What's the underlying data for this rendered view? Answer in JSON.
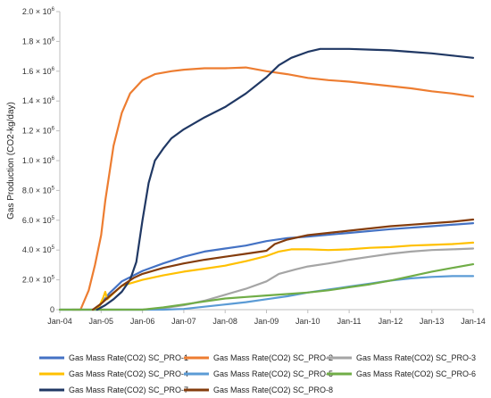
{
  "chart_data": {
    "type": "line",
    "title": "",
    "xlabel": "",
    "ylabel": "Gas Production (CO2-kg/day)",
    "xlim": [
      2004.0,
      2014.0
    ],
    "ylim": [
      0,
      2000000
    ],
    "x_ticks": [
      "Jan-04",
      "Jan-05",
      "Jan-06",
      "Jan-07",
      "Jan-08",
      "Jan-09",
      "Jan-10",
      "Jan-11",
      "Jan-12",
      "Jan-13",
      "Jan-14"
    ],
    "y_ticks": [
      {
        "mantissa": "0",
        "exp": "",
        "value": 0
      },
      {
        "mantissa": "2.0 × 10",
        "exp": "5",
        "value": 200000
      },
      {
        "mantissa": "4.0 × 10",
        "exp": "5",
        "value": 400000
      },
      {
        "mantissa": "6.0 × 10",
        "exp": "5",
        "value": 600000
      },
      {
        "mantissa": "8.0 × 10",
        "exp": "5",
        "value": 800000
      },
      {
        "mantissa": "1.0 × 10",
        "exp": "6",
        "value": 1000000
      },
      {
        "mantissa": "1.2 × 10",
        "exp": "6",
        "value": 1200000
      },
      {
        "mantissa": "1.4 × 10",
        "exp": "6",
        "value": 1400000
      },
      {
        "mantissa": "1.6 × 10",
        "exp": "6",
        "value": 1600000
      },
      {
        "mantissa": "1.8 × 10",
        "exp": "6",
        "value": 1800000
      },
      {
        "mantissa": "2.0 × 10",
        "exp": "6",
        "value": 2000000
      }
    ],
    "grid": false,
    "legend_position": "bottom",
    "series": [
      {
        "name": "Gas Mass Rate(CO2) SC_PRO-1",
        "color": "#4472C4",
        "points": [
          [
            2004.9,
            0
          ],
          [
            2005.0,
            40000
          ],
          [
            2005.2,
            110000
          ],
          [
            2005.5,
            190000
          ],
          [
            2006.0,
            260000
          ],
          [
            2006.5,
            310000
          ],
          [
            2007.0,
            355000
          ],
          [
            2007.5,
            390000
          ],
          [
            2008.0,
            410000
          ],
          [
            2008.5,
            430000
          ],
          [
            2009.0,
            460000
          ],
          [
            2009.5,
            480000
          ],
          [
            2010.0,
            490000
          ],
          [
            2011.0,
            515000
          ],
          [
            2012.0,
            540000
          ],
          [
            2013.0,
            560000
          ],
          [
            2014.0,
            580000
          ]
        ]
      },
      {
        "name": "Gas Mass Rate(CO2) SC_PRO-2",
        "color": "#ED7D31",
        "points": [
          [
            2004.3,
            0
          ],
          [
            2004.5,
            0
          ],
          [
            2004.7,
            130000
          ],
          [
            2004.85,
            300000
          ],
          [
            2005.0,
            500000
          ],
          [
            2005.1,
            730000
          ],
          [
            2005.3,
            1100000
          ],
          [
            2005.5,
            1320000
          ],
          [
            2005.7,
            1450000
          ],
          [
            2006.0,
            1540000
          ],
          [
            2006.3,
            1580000
          ],
          [
            2006.7,
            1600000
          ],
          [
            2007.0,
            1610000
          ],
          [
            2007.5,
            1620000
          ],
          [
            2008.0,
            1620000
          ],
          [
            2008.5,
            1625000
          ],
          [
            2009.0,
            1600000
          ],
          [
            2009.5,
            1580000
          ],
          [
            2010.0,
            1555000
          ],
          [
            2010.5,
            1540000
          ],
          [
            2011.0,
            1530000
          ],
          [
            2011.5,
            1515000
          ],
          [
            2012.0,
            1500000
          ],
          [
            2012.5,
            1485000
          ],
          [
            2013.0,
            1465000
          ],
          [
            2013.5,
            1450000
          ],
          [
            2014.0,
            1430000
          ]
        ]
      },
      {
        "name": "Gas Mass Rate(CO2) SC_PRO-3",
        "color": "#A5A5A5",
        "points": [
          [
            2004.0,
            0
          ],
          [
            2006.0,
            0
          ],
          [
            2006.5,
            10000
          ],
          [
            2007.0,
            30000
          ],
          [
            2007.5,
            60000
          ],
          [
            2008.0,
            100000
          ],
          [
            2008.5,
            140000
          ],
          [
            2009.0,
            190000
          ],
          [
            2009.3,
            240000
          ],
          [
            2009.7,
            270000
          ],
          [
            2010.0,
            290000
          ],
          [
            2010.5,
            310000
          ],
          [
            2011.0,
            335000
          ],
          [
            2011.5,
            355000
          ],
          [
            2012.0,
            375000
          ],
          [
            2012.5,
            390000
          ],
          [
            2013.0,
            400000
          ],
          [
            2013.5,
            405000
          ],
          [
            2014.0,
            410000
          ]
        ]
      },
      {
        "name": "Gas Mass Rate(CO2) SC_PRO-4",
        "color": "#FFC000",
        "points": [
          [
            2004.8,
            0
          ],
          [
            2004.95,
            20000
          ],
          [
            2005.05,
            80000
          ],
          [
            2005.1,
            120000
          ],
          [
            2005.15,
            70000
          ],
          [
            2005.3,
            110000
          ],
          [
            2005.5,
            160000
          ],
          [
            2006.0,
            200000
          ],
          [
            2006.5,
            230000
          ],
          [
            2007.0,
            255000
          ],
          [
            2007.5,
            275000
          ],
          [
            2008.0,
            295000
          ],
          [
            2008.5,
            325000
          ],
          [
            2009.0,
            360000
          ],
          [
            2009.3,
            390000
          ],
          [
            2009.6,
            405000
          ],
          [
            2010.0,
            405000
          ],
          [
            2010.5,
            400000
          ],
          [
            2011.0,
            405000
          ],
          [
            2011.5,
            415000
          ],
          [
            2012.0,
            420000
          ],
          [
            2012.5,
            430000
          ],
          [
            2013.0,
            435000
          ],
          [
            2013.5,
            440000
          ],
          [
            2014.0,
            450000
          ]
        ]
      },
      {
        "name": "Gas Mass Rate(CO2) SC_PRO-5",
        "color": "#5B9BD5",
        "points": [
          [
            2004.0,
            0
          ],
          [
            2006.5,
            0
          ],
          [
            2007.0,
            5000
          ],
          [
            2007.5,
            20000
          ],
          [
            2008.0,
            35000
          ],
          [
            2008.5,
            50000
          ],
          [
            2009.0,
            70000
          ],
          [
            2009.5,
            90000
          ],
          [
            2010.0,
            115000
          ],
          [
            2010.5,
            135000
          ],
          [
            2011.0,
            155000
          ],
          [
            2011.5,
            175000
          ],
          [
            2012.0,
            195000
          ],
          [
            2012.5,
            210000
          ],
          [
            2013.0,
            220000
          ],
          [
            2013.5,
            225000
          ],
          [
            2014.0,
            225000
          ]
        ]
      },
      {
        "name": "Gas Mass Rate(CO2) SC_PRO-6",
        "color": "#70AD47",
        "points": [
          [
            2004.0,
            0
          ],
          [
            2006.0,
            0
          ],
          [
            2006.5,
            15000
          ],
          [
            2007.0,
            35000
          ],
          [
            2007.5,
            55000
          ],
          [
            2008.0,
            75000
          ],
          [
            2008.5,
            85000
          ],
          [
            2009.0,
            95000
          ],
          [
            2009.5,
            105000
          ],
          [
            2010.0,
            115000
          ],
          [
            2010.5,
            130000
          ],
          [
            2011.0,
            150000
          ],
          [
            2011.5,
            170000
          ],
          [
            2012.0,
            195000
          ],
          [
            2012.5,
            225000
          ],
          [
            2013.0,
            255000
          ],
          [
            2013.5,
            280000
          ],
          [
            2014.0,
            305000
          ]
        ]
      },
      {
        "name": "Gas Mass Rate(CO2) SC_PRO-7",
        "color": "#203864",
        "points": [
          [
            2004.9,
            0
          ],
          [
            2005.1,
            30000
          ],
          [
            2005.3,
            70000
          ],
          [
            2005.5,
            120000
          ],
          [
            2005.7,
            200000
          ],
          [
            2005.85,
            320000
          ],
          [
            2006.0,
            600000
          ],
          [
            2006.15,
            850000
          ],
          [
            2006.3,
            1000000
          ],
          [
            2006.5,
            1080000
          ],
          [
            2006.7,
            1150000
          ],
          [
            2007.0,
            1210000
          ],
          [
            2007.5,
            1290000
          ],
          [
            2008.0,
            1360000
          ],
          [
            2008.5,
            1450000
          ],
          [
            2009.0,
            1560000
          ],
          [
            2009.3,
            1640000
          ],
          [
            2009.6,
            1690000
          ],
          [
            2010.0,
            1730000
          ],
          [
            2010.3,
            1750000
          ],
          [
            2010.6,
            1750000
          ],
          [
            2011.0,
            1750000
          ],
          [
            2011.5,
            1745000
          ],
          [
            2012.0,
            1740000
          ],
          [
            2012.5,
            1730000
          ],
          [
            2013.0,
            1720000
          ],
          [
            2013.5,
            1705000
          ],
          [
            2014.0,
            1690000
          ]
        ]
      },
      {
        "name": "Gas Mass Rate(CO2) SC_PRO-8",
        "color": "#843C0C",
        "points": [
          [
            2004.8,
            0
          ],
          [
            2005.0,
            40000
          ],
          [
            2005.2,
            90000
          ],
          [
            2005.5,
            160000
          ],
          [
            2005.8,
            215000
          ],
          [
            2006.0,
            240000
          ],
          [
            2006.5,
            280000
          ],
          [
            2007.0,
            310000
          ],
          [
            2007.5,
            335000
          ],
          [
            2008.0,
            355000
          ],
          [
            2008.5,
            375000
          ],
          [
            2009.0,
            395000
          ],
          [
            2009.2,
            440000
          ],
          [
            2009.5,
            470000
          ],
          [
            2010.0,
            500000
          ],
          [
            2010.5,
            515000
          ],
          [
            2011.0,
            530000
          ],
          [
            2011.5,
            545000
          ],
          [
            2012.0,
            560000
          ],
          [
            2012.5,
            570000
          ],
          [
            2013.0,
            580000
          ],
          [
            2013.5,
            590000
          ],
          [
            2014.0,
            605000
          ]
        ]
      }
    ]
  }
}
